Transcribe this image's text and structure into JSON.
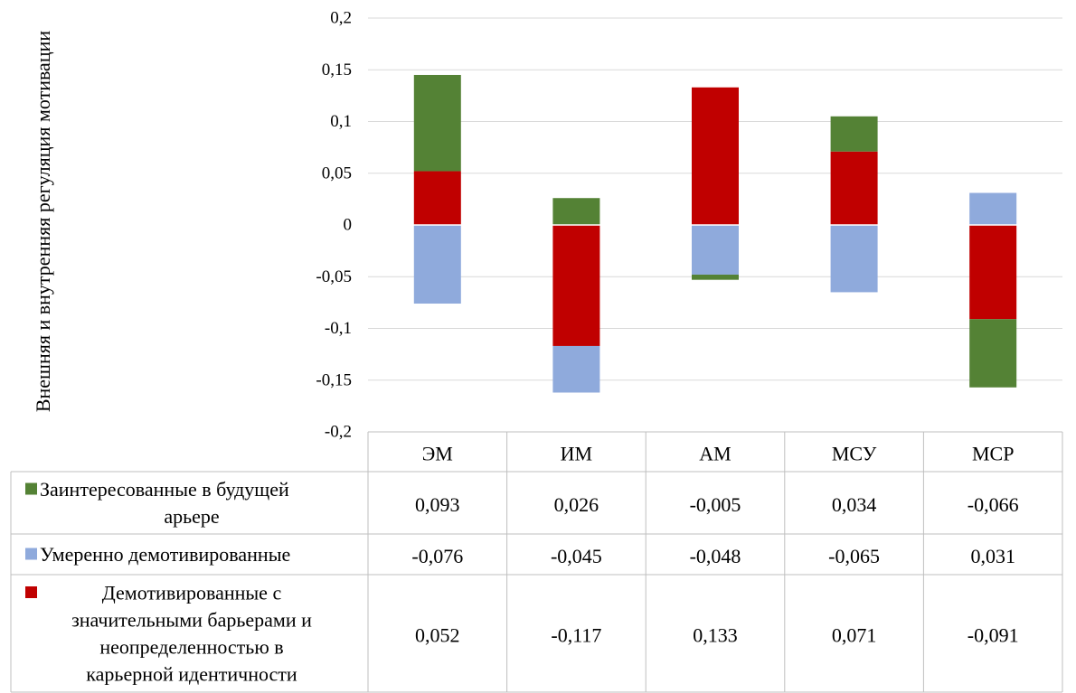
{
  "chart_data": {
    "type": "bar",
    "stacked": true,
    "ylabel": "Внешняя и внутренняя регуляция мотивации",
    "ylim": [
      -0.2,
      0.2
    ],
    "yticks": [
      0.2,
      0.15,
      0.1,
      0.05,
      0,
      -0.05,
      -0.1,
      -0.15,
      -0.2
    ],
    "ytick_labels": [
      "0,2",
      "0,15",
      "0,1",
      "0,05",
      "0",
      "-0,05",
      "-0,1",
      "-0,15",
      "-0,2"
    ],
    "grid": true,
    "legend": "data-table",
    "categories": [
      "ЭМ",
      "ИМ",
      "АМ",
      "МСУ",
      "МСР"
    ],
    "series": [
      {
        "name": "Заинтересованные в будущей карьере",
        "color": "#548235",
        "values": [
          0.093,
          0.026,
          -0.005,
          0.034,
          -0.066
        ],
        "labels": [
          "0,093",
          "0,026",
          "-0,005",
          "0,034",
          "-0,066"
        ]
      },
      {
        "name": "Умеренно демотивированные",
        "color": "#8faadc",
        "values": [
          -0.076,
          -0.045,
          -0.048,
          -0.065,
          0.031
        ],
        "labels": [
          "-0,076",
          "-0,045",
          "-0,048",
          "-0,065",
          "0,031"
        ]
      },
      {
        "name": "Демотивированные с значительными барьерами и неопределенностью в карьерной идентичности",
        "color": "#c00000",
        "values": [
          0.052,
          -0.117,
          0.133,
          0.071,
          -0.091
        ],
        "labels": [
          "0,052",
          "-0,117",
          "0,133",
          "0,071",
          "-0,091"
        ]
      }
    ]
  }
}
